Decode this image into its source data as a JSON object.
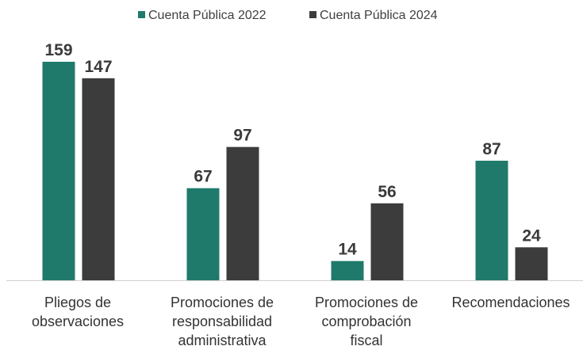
{
  "chart_data": {
    "type": "bar",
    "categories": [
      [
        "Pliegos de",
        "observaciones"
      ],
      [
        "Promociones de",
        "responsabilidad",
        "administrativa"
      ],
      [
        "Promociones de",
        "comprobación",
        "fiscal"
      ],
      [
        "Recomendaciones"
      ]
    ],
    "series": [
      {
        "name": "Cuenta Pública 2022",
        "color": "#1f7a6b",
        "values": [
          159,
          67,
          14,
          87
        ]
      },
      {
        "name": "Cuenta Pública 2024",
        "color": "#3c3c3c",
        "values": [
          147,
          97,
          56,
          24
        ]
      }
    ],
    "ylim": [
      0,
      170
    ],
    "grid": false,
    "legend_position": "top-center"
  }
}
